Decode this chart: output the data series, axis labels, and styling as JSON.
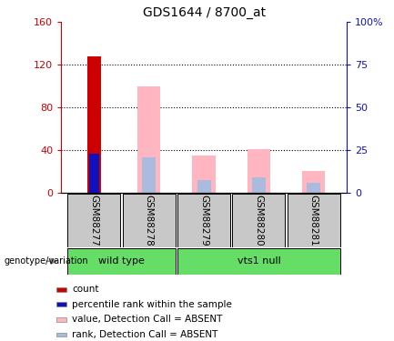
{
  "title": "GDS1644 / 8700_at",
  "samples": [
    "GSM88277",
    "GSM88278",
    "GSM88279",
    "GSM88280",
    "GSM88281"
  ],
  "count_values": [
    128,
    0,
    0,
    0,
    0
  ],
  "percentile_values": [
    37,
    0,
    0,
    0,
    0
  ],
  "absent_value_values": [
    0,
    100,
    35,
    41,
    20
  ],
  "absent_rank_values": [
    0,
    33,
    12,
    14,
    9
  ],
  "ylim_left": [
    0,
    160
  ],
  "ylim_right": [
    0,
    100
  ],
  "yticks_left": [
    0,
    40,
    80,
    120,
    160
  ],
  "yticks_right": [
    0,
    25,
    50,
    75,
    100
  ],
  "yticklabels_left": [
    "0",
    "40",
    "80",
    "120",
    "160"
  ],
  "yticklabels_right": [
    "0",
    "25",
    "50",
    "75",
    "100%"
  ],
  "colors": {
    "count": "#CC0000",
    "percentile": "#1111BB",
    "absent_value": "#FFB6C1",
    "absent_rank": "#AABBDD",
    "label_bg": "#C8C8C8",
    "group_green": "#66DD66"
  },
  "legend_items": [
    {
      "label": "count",
      "color": "#CC0000"
    },
    {
      "label": "percentile rank within the sample",
      "color": "#1111BB"
    },
    {
      "label": "value, Detection Call = ABSENT",
      "color": "#FFB6C1"
    },
    {
      "label": "rank, Detection Call = ABSENT",
      "color": "#AABBDD"
    }
  ],
  "genotype_label": "genotype/variation",
  "wild_type_label": "wild type",
  "vts1_label": "vts1 null"
}
